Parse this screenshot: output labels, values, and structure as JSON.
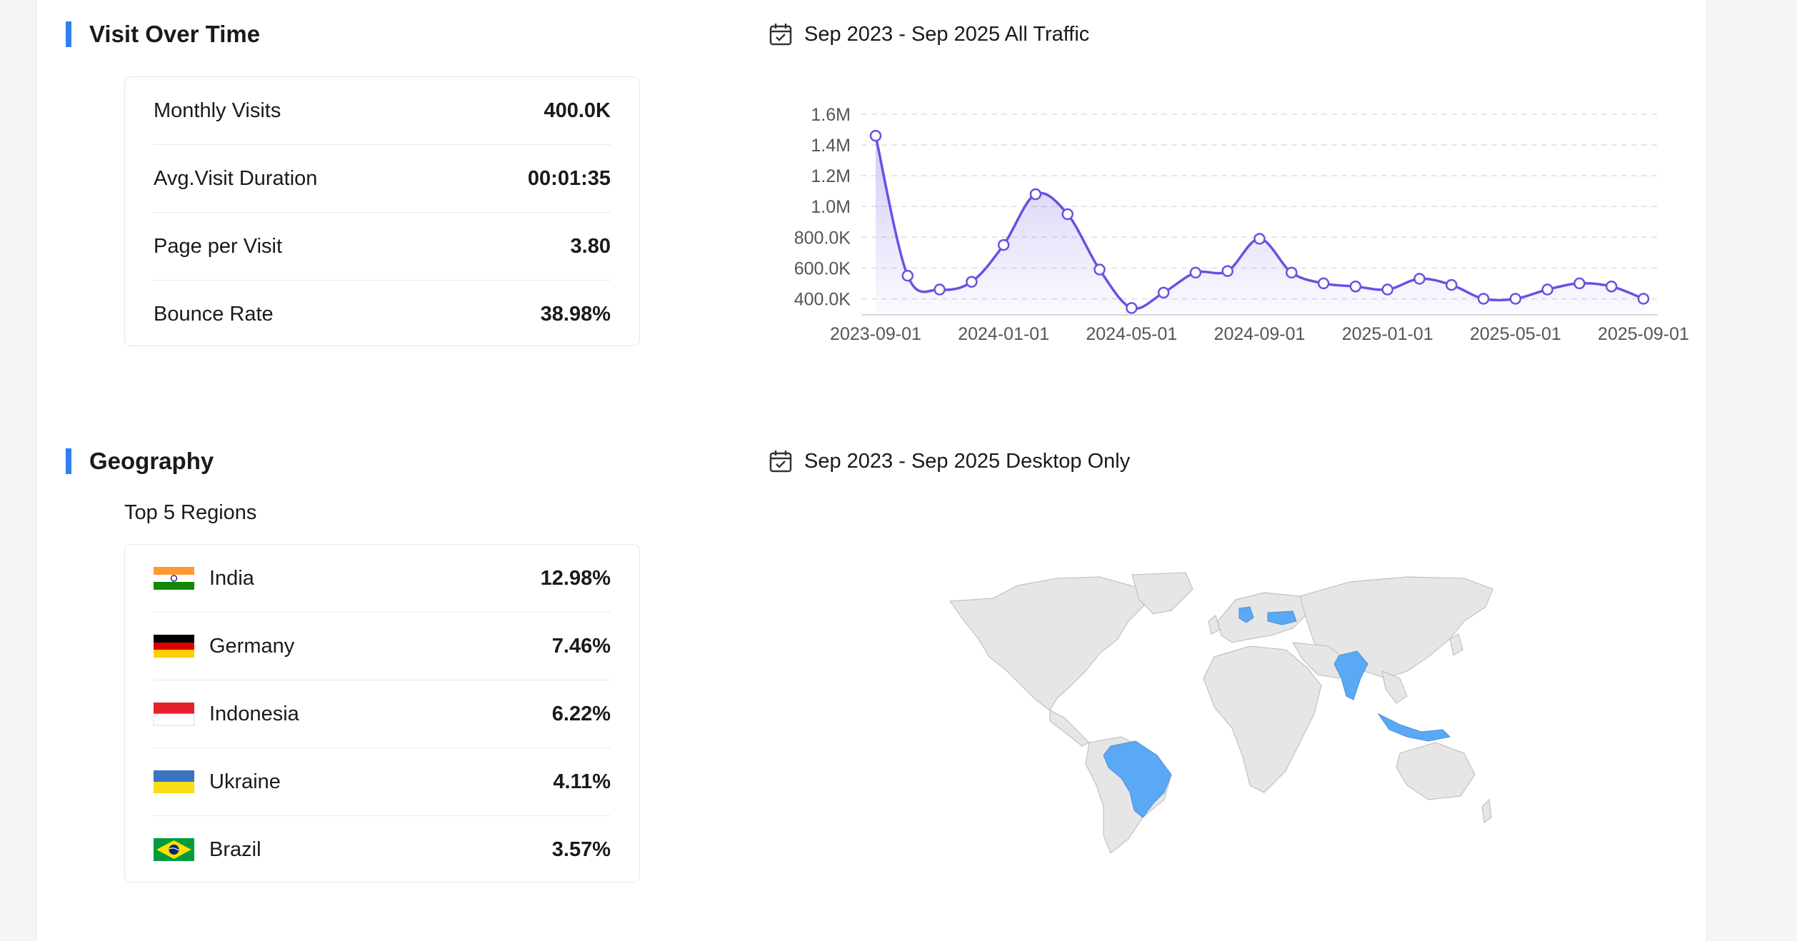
{
  "visit_section": {
    "title": "Visit Over Time",
    "date_range": "Sep 2023 - Sep 2025 All Traffic",
    "metrics": [
      {
        "label": "Monthly Visits",
        "value": "400.0K"
      },
      {
        "label": "Avg.Visit Duration",
        "value": "00:01:35"
      },
      {
        "label": "Page per Visit",
        "value": "3.80"
      },
      {
        "label": "Bounce Rate",
        "value": "38.98%"
      }
    ]
  },
  "geo_section": {
    "title": "Geography",
    "date_range": "Sep 2023 - Sep 2025 Desktop Only",
    "subtitle": "Top 5 Regions",
    "regions": [
      {
        "name": "India",
        "value": "12.98%",
        "flag_icon": "india-flag-icon"
      },
      {
        "name": "Germany",
        "value": "7.46%",
        "flag_icon": "germany-flag-icon"
      },
      {
        "name": "Indonesia",
        "value": "6.22%",
        "flag_icon": "indonesia-flag-icon"
      },
      {
        "name": "Ukraine",
        "value": "4.11%",
        "flag_icon": "ukraine-flag-icon"
      },
      {
        "name": "Brazil",
        "value": "3.57%",
        "flag_icon": "brazil-flag-icon"
      }
    ],
    "highlight_color": "#5ba8f5",
    "land_color": "#e6e6e6"
  },
  "colors": {
    "accent_bar": "#2f80ed",
    "line": "#6c4fe0"
  },
  "icons": {
    "calendar": "calendar-check-icon"
  },
  "chart_data": {
    "type": "area",
    "x": [
      "2023-09-01",
      "2023-10-01",
      "2023-11-01",
      "2023-12-01",
      "2024-01-01",
      "2024-02-01",
      "2024-03-01",
      "2024-04-01",
      "2024-05-01",
      "2024-06-01",
      "2024-07-01",
      "2024-08-01",
      "2024-09-01",
      "2024-10-01",
      "2024-11-01",
      "2024-12-01",
      "2025-01-01",
      "2025-02-01",
      "2025-03-01",
      "2025-04-01",
      "2025-05-01",
      "2025-06-01",
      "2025-07-01",
      "2025-08-01",
      "2025-09-01"
    ],
    "x_tick_labels": [
      "2023-09-01",
      "2024-01-01",
      "2024-05-01",
      "2024-09-01",
      "2025-01-01",
      "2025-05-01",
      "2025-09-01"
    ],
    "values": [
      1460000,
      550000,
      460000,
      510000,
      750000,
      1080000,
      950000,
      590000,
      340000,
      440000,
      570000,
      580000,
      790000,
      570000,
      500000,
      480000,
      460000,
      530000,
      490000,
      400000,
      400000,
      460000,
      500000,
      480000,
      400000
    ],
    "y_ticks": [
      400000,
      600000,
      800000,
      1000000,
      1200000,
      1400000,
      1600000
    ],
    "y_tick_labels": [
      "400.0K",
      "600.0K",
      "800.0K",
      "1.0M",
      "1.2M",
      "1.4M",
      "1.6M"
    ],
    "ylim": [
      300000,
      1600000
    ],
    "grid": true
  }
}
